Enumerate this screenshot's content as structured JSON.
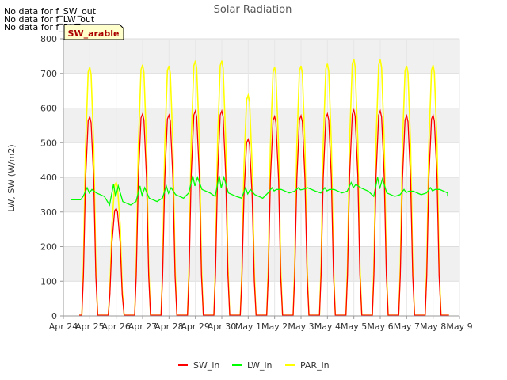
{
  "notices": [
    "No data for f_SW_out",
    "No data for f_LW_out",
    "No data for f_PAR_out"
  ],
  "site_box": {
    "label": "SW_arable",
    "text_color": "#aa0000",
    "bg_color": "#ffffcc"
  },
  "chart_data": {
    "type": "line",
    "title": "Solar Radiation",
    "xlabel": "",
    "ylabel": "LW, SW (W/m2)",
    "ylim": [
      0,
      800
    ],
    "yticks": [
      0,
      100,
      200,
      300,
      400,
      500,
      600,
      700,
      800
    ],
    "xlim": [
      "2024-04-24",
      "2024-05-09"
    ],
    "xtick_labels": [
      "Apr 24",
      "Apr 25",
      "Apr 26",
      "Apr 27",
      "Apr 28",
      "Apr 29",
      "Apr 30",
      "May 1",
      "May 2",
      "May 3",
      "May 4",
      "May 5",
      "May 6",
      "May 7",
      "May 8",
      "May 9"
    ],
    "grid": true,
    "legend_position": "bottom",
    "days": [
      "2024-04-25",
      "2024-04-26",
      "2024-04-27",
      "2024-04-28",
      "2024-04-29",
      "2024-04-30",
      "2024-05-01",
      "2024-05-02",
      "2024-05-03",
      "2024-05-04",
      "2024-05-05",
      "2024-05-06",
      "2024-05-07",
      "2024-05-08"
    ],
    "series": [
      {
        "name": "SW_in",
        "color": "#ff0000",
        "daily_peak": [
          575,
          310,
          583,
          580,
          592,
          592,
          510,
          576,
          578,
          583,
          594,
          592,
          578,
          580
        ]
      },
      {
        "name": "LW_in",
        "color": "#00ff00",
        "daily_level": [
          345,
          320,
          330,
          340,
          355,
          345,
          340,
          355,
          360,
          355,
          360,
          345,
          350,
          355
        ],
        "daily_peak": [
          370,
          380,
          375,
          375,
          405,
          405,
          370,
          370,
          370,
          370,
          385,
          400,
          365,
          370
        ],
        "start_value": 335,
        "end_value": 345
      },
      {
        "name": "PAR_in",
        "color": "#ffff00",
        "daily_peak": [
          718,
          385,
          725,
          722,
          737,
          737,
          637,
          718,
          722,
          728,
          742,
          740,
          722,
          724
        ]
      }
    ]
  }
}
